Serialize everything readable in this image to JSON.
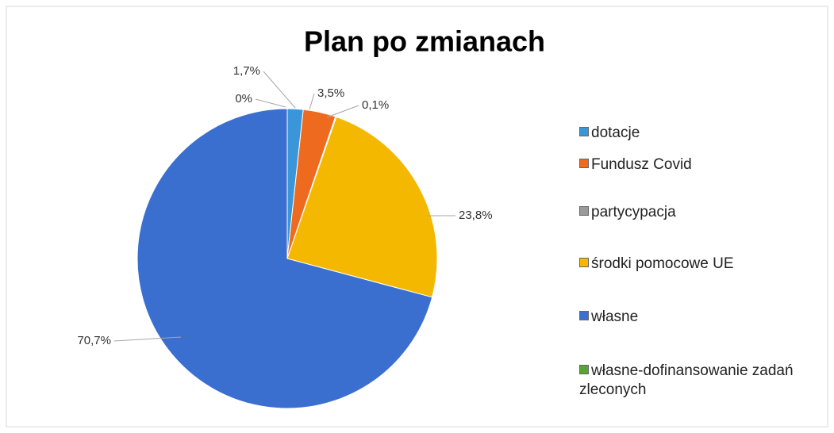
{
  "chart_data": {
    "type": "pie",
    "title": "Plan po zmianach",
    "categories": [
      "dotacje",
      "Fundusz Covid",
      "partycypacja",
      "środki pomocowe UE",
      "własne",
      "własne-dofinansowanie zadań zleconych"
    ],
    "values": [
      1.7,
      3.5,
      0.1,
      23.8,
      70.7,
      0
    ],
    "value_labels": [
      "1,7%",
      "3,5%",
      "0,1%",
      "23,8%",
      "70,7%",
      "0%"
    ],
    "colors": [
      "#3a96d8",
      "#ed6a1f",
      "#9a9a9a",
      "#f5b800",
      "#3a6fd0",
      "#5aa532"
    ],
    "legend": "right"
  }
}
